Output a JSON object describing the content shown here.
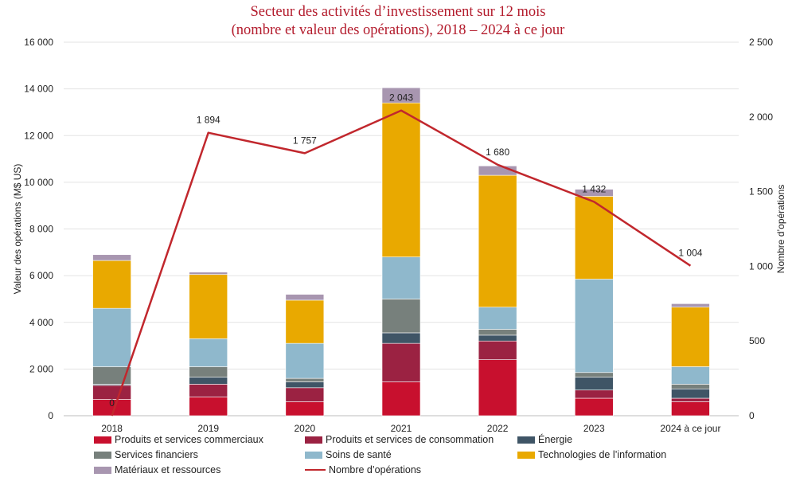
{
  "chart_data": {
    "type": "bar",
    "title_line1": "Secteur des activités d’investissement sur 12 mois",
    "title_line2": "(nombre et valeur des opérations), 2018 – 2024 à ce jour",
    "ylabel": "Valeur des opérations (M$ US)",
    "y2label": "Nombre d’opérations",
    "ylim": [
      0,
      16000
    ],
    "y2lim": [
      0,
      2500
    ],
    "yticks": [
      "0",
      "2 000",
      "4 000",
      "6 000",
      "8 000",
      "10 000",
      "12 000",
      "14 000",
      "16 000"
    ],
    "y2ticks": [
      "0",
      "500",
      "1 000",
      "1 500",
      "2 000",
      "2 500"
    ],
    "grid": true,
    "categories": [
      "2018",
      "2019",
      "2020",
      "2021",
      "2022",
      "2023",
      "2024 à ce jour"
    ],
    "series": [
      {
        "name": "Produits et services commerciaux",
        "color": "#c8102e",
        "values": [
          700,
          800,
          600,
          1450,
          2400,
          750,
          600
        ]
      },
      {
        "name": "Produits et services de consommation",
        "color": "#9b2242",
        "values": [
          600,
          550,
          600,
          1650,
          800,
          350,
          150
        ]
      },
      {
        "name": "Énergie",
        "color": "#3f5566",
        "values": [
          50,
          300,
          250,
          450,
          250,
          550,
          400
        ]
      },
      {
        "name": "Services financiers",
        "color": "#77807c",
        "values": [
          750,
          450,
          150,
          1450,
          250,
          200,
          200
        ]
      },
      {
        "name": "Soins de santé",
        "color": "#8fb8cc",
        "values": [
          2500,
          1200,
          1500,
          1800,
          950,
          4000,
          750
        ]
      },
      {
        "name": "Technologies de l’information",
        "color": "#e9a900",
        "values": [
          2050,
          2750,
          1850,
          6600,
          5650,
          3550,
          2550
        ]
      },
      {
        "name": "Matériaux et ressources",
        "color": "#a896b0",
        "values": [
          250,
          100,
          250,
          650,
          400,
          300,
          150
        ]
      }
    ],
    "line_series": {
      "name": "Nombre d’opérations",
      "color": "#c1272d",
      "values": [
        0,
        1894,
        1757,
        2043,
        1680,
        1432,
        1004
      ],
      "labels": [
        "0",
        "1 894",
        "1 757",
        "2 043",
        "1 680",
        "1 432",
        "1 004"
      ]
    }
  }
}
